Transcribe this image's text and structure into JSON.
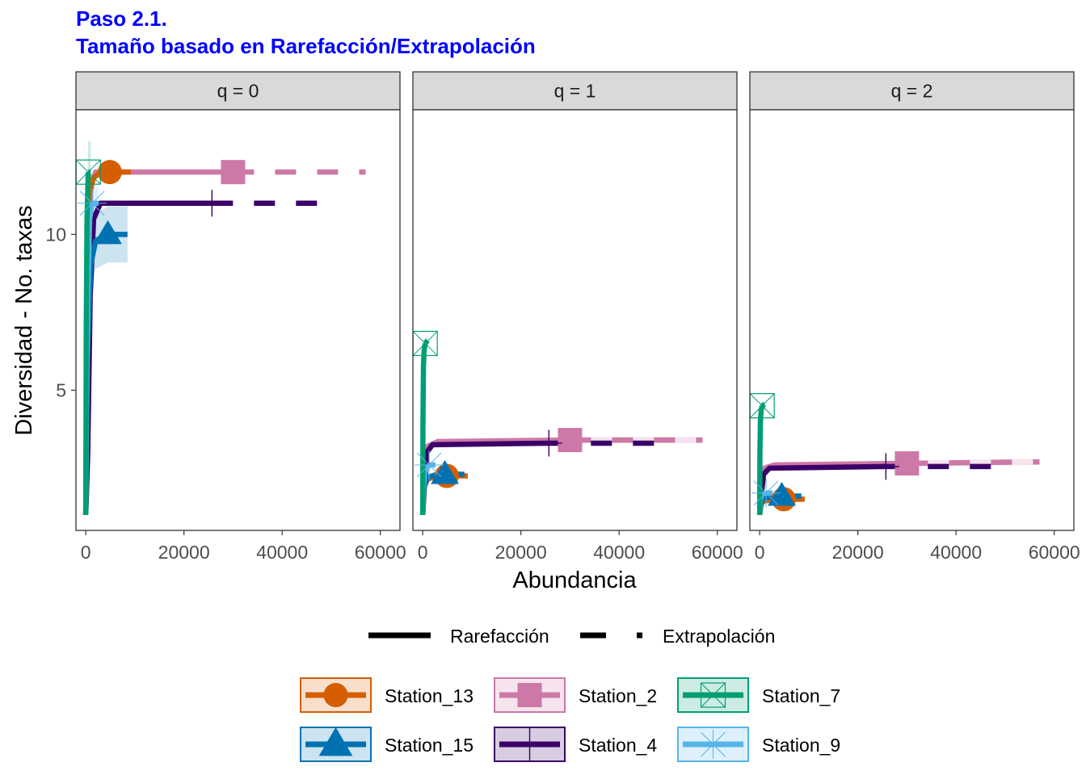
{
  "title": "Paso 2.1.",
  "subtitle": "Tamaño basado en Rarefacción/Extrapolación",
  "chart_data": {
    "type": "line",
    "xlabel": "Abundancia",
    "ylabel": "Diversidad - No. taxas",
    "xlim": [
      -2000,
      64000
    ],
    "ylim": [
      0.5,
      14.0
    ],
    "xticks": [
      0,
      20000,
      40000,
      60000
    ],
    "yticks": [
      5,
      10
    ],
    "grid": false,
    "legend_position": "bottom",
    "method_legend": [
      {
        "label": "Rarefacción",
        "linetype": "solid"
      },
      {
        "label": "Extrapolación",
        "linetype": "dashed"
      }
    ],
    "stations": [
      {
        "name": "Station_13",
        "color": "#D55E00",
        "shape": "circle"
      },
      {
        "name": "Station_2",
        "color": "#CC79A7",
        "shape": "square"
      },
      {
        "name": "Station_7",
        "color": "#009E73",
        "shape": "boxcross"
      },
      {
        "name": "Station_15",
        "color": "#0072B2",
        "shape": "triangle"
      },
      {
        "name": "Station_4",
        "color": "#3B0068",
        "shape": "plus"
      },
      {
        "name": "Station_9",
        "color": "#56B4E9",
        "shape": "asterisk"
      }
    ],
    "panels": [
      {
        "label": "q = 0",
        "series": [
          {
            "name": "Station_13",
            "observed": [
              4900,
              12.0
            ],
            "end": [
              9800,
              12.0
            ],
            "rarefaction": [
              [
                0,
                1
              ],
              [
                300,
                8
              ],
              [
                800,
                11.3
              ],
              [
                1500,
                11.8
              ],
              [
                3000,
                12
              ],
              [
                4900,
                12
              ]
            ],
            "extrapolation": [
              [
                4900,
                12
              ],
              [
                9800,
                12
              ]
            ],
            "ci_low": 0,
            "ci_high": 0
          },
          {
            "name": "Station_2",
            "observed": [
              30000,
              12.0
            ],
            "end": [
              57000,
              12.0
            ],
            "rarefaction": [
              [
                0,
                1
              ],
              [
                300,
                7
              ],
              [
                1000,
                11.5
              ],
              [
                2000,
                12
              ],
              [
                30000,
                12
              ]
            ],
            "extrapolation": [
              [
                30000,
                12
              ],
              [
                57000,
                12
              ]
            ],
            "ci_low": 0,
            "ci_high": 0
          },
          {
            "name": "Station_7",
            "observed": [
              500,
              12.0
            ],
            "end": [
              1000,
              12.0
            ],
            "rarefaction": [
              [
                0,
                1
              ],
              [
                100,
                7
              ],
              [
                250,
                10.5
              ],
              [
                500,
                12
              ]
            ],
            "extrapolation": [
              [
                500,
                12
              ],
              [
                1000,
                12
              ]
            ],
            "ci_low": 1.0,
            "ci_high": 1.0
          },
          {
            "name": "Station_15",
            "observed": [
              4500,
              10.0
            ],
            "end": [
              8500,
              10.0
            ],
            "rarefaction": [
              [
                0,
                1
              ],
              [
                300,
                6
              ],
              [
                1000,
                9
              ],
              [
                2000,
                9.8
              ],
              [
                4500,
                10
              ]
            ],
            "extrapolation": [
              [
                4500,
                10
              ],
              [
                8500,
                10
              ]
            ],
            "ci_low": 0.9,
            "ci_high": 0.9
          },
          {
            "name": "Station_4",
            "observed": [
              25700,
              11.0
            ],
            "end": [
              51000,
              11.0
            ],
            "rarefaction": [
              [
                0,
                1
              ],
              [
                400,
                3
              ],
              [
                900,
                8
              ],
              [
                1600,
                10.5
              ],
              [
                3000,
                11
              ],
              [
                25700,
                11
              ]
            ],
            "extrapolation": [
              [
                25700,
                11
              ],
              [
                51000,
                11
              ]
            ],
            "ci_low": 0,
            "ci_high": 0
          },
          {
            "name": "Station_9",
            "observed": [
              1300,
              11.0
            ],
            "end": [
              2600,
              11.0
            ],
            "rarefaction": [
              [
                0,
                1
              ],
              [
                150,
                4
              ],
              [
                400,
                8
              ],
              [
                800,
                10.5
              ],
              [
                1300,
                11
              ]
            ],
            "extrapolation": [
              [
                1300,
                11
              ],
              [
                2600,
                11
              ]
            ],
            "ci_low": 0.5,
            "ci_high": 0.5
          }
        ]
      },
      {
        "label": "q = 1",
        "series": [
          {
            "name": "Station_13",
            "observed": [
              4900,
              2.25
            ],
            "end": [
              9800,
              2.25
            ],
            "rarefaction": [
              [
                0,
                1
              ],
              [
                300,
                1.9
              ],
              [
                1000,
                2.15
              ],
              [
                2500,
                2.22
              ],
              [
                4900,
                2.25
              ]
            ],
            "extrapolation": [
              [
                4900,
                2.25
              ],
              [
                9800,
                2.25
              ]
            ],
            "ci_low": 0,
            "ci_high": 0
          },
          {
            "name": "Station_2",
            "observed": [
              30000,
              3.4
            ],
            "end": [
              57000,
              3.4
            ],
            "rarefaction": [
              [
                0,
                1
              ],
              [
                300,
                2.6
              ],
              [
                1000,
                3.2
              ],
              [
                3000,
                3.35
              ],
              [
                30000,
                3.4
              ]
            ],
            "extrapolation": [
              [
                30000,
                3.4
              ],
              [
                57000,
                3.4
              ]
            ],
            "ci_low": 0.1,
            "ci_high": 0.1
          },
          {
            "name": "Station_7",
            "observed": [
              500,
              6.5
            ],
            "end": [
              1000,
              6.6
            ],
            "rarefaction": [
              [
                0,
                1
              ],
              [
                50,
                4
              ],
              [
                150,
                5.8
              ],
              [
                300,
                6.3
              ],
              [
                500,
                6.5
              ]
            ],
            "extrapolation": [
              [
                500,
                6.5
              ],
              [
                1000,
                6.6
              ]
            ],
            "ci_low": 0.15,
            "ci_high": 0.15
          },
          {
            "name": "Station_15",
            "observed": [
              4500,
              2.3
            ],
            "end": [
              8500,
              2.3
            ],
            "rarefaction": [
              [
                0,
                1
              ],
              [
                300,
                1.9
              ],
              [
                1000,
                2.2
              ],
              [
                2500,
                2.28
              ],
              [
                4500,
                2.3
              ]
            ],
            "extrapolation": [
              [
                4500,
                2.3
              ],
              [
                8500,
                2.3
              ]
            ],
            "ci_low": 0.05,
            "ci_high": 0.05
          },
          {
            "name": "Station_4",
            "observed": [
              25700,
              3.3
            ],
            "end": [
              51000,
              3.3
            ],
            "rarefaction": [
              [
                0,
                1
              ],
              [
                300,
                1.8
              ],
              [
                800,
                3.0
              ],
              [
                2000,
                3.25
              ],
              [
                25700,
                3.3
              ]
            ],
            "extrapolation": [
              [
                25700,
                3.3
              ],
              [
                51000,
                3.3
              ]
            ],
            "ci_low": 0,
            "ci_high": 0
          },
          {
            "name": "Station_9",
            "observed": [
              1300,
              2.6
            ],
            "end": [
              2600,
              2.6
            ],
            "rarefaction": [
              [
                0,
                1
              ],
              [
                100,
                1.8
              ],
              [
                400,
                2.4
              ],
              [
                1300,
                2.6
              ]
            ],
            "extrapolation": [
              [
                1300,
                2.6
              ],
              [
                2600,
                2.6
              ]
            ],
            "ci_low": 0.05,
            "ci_high": 0.05
          }
        ]
      },
      {
        "label": "q = 2",
        "series": [
          {
            "name": "Station_13",
            "observed": [
              4900,
              1.5
            ],
            "end": [
              9800,
              1.5
            ],
            "rarefaction": [
              [
                0,
                1
              ],
              [
                300,
                1.35
              ],
              [
                1000,
                1.45
              ],
              [
                4900,
                1.5
              ]
            ],
            "extrapolation": [
              [
                4900,
                1.5
              ],
              [
                9800,
                1.5
              ]
            ],
            "ci_low": 0,
            "ci_high": 0
          },
          {
            "name": "Station_2",
            "observed": [
              30000,
              2.65
            ],
            "end": [
              57000,
              2.7
            ],
            "rarefaction": [
              [
                0,
                1
              ],
              [
                300,
                2.1
              ],
              [
                1000,
                2.5
              ],
              [
                3000,
                2.6
              ],
              [
                30000,
                2.65
              ]
            ],
            "extrapolation": [
              [
                30000,
                2.65
              ],
              [
                57000,
                2.7
              ]
            ],
            "ci_low": 0.1,
            "ci_high": 0.1
          },
          {
            "name": "Station_7",
            "observed": [
              500,
              4.5
            ],
            "end": [
              1000,
              4.55
            ],
            "rarefaction": [
              [
                0,
                1
              ],
              [
                50,
                3
              ],
              [
                150,
                4
              ],
              [
                300,
                4.35
              ],
              [
                500,
                4.5
              ]
            ],
            "extrapolation": [
              [
                500,
                4.5
              ],
              [
                1000,
                4.55
              ]
            ],
            "ci_low": 0.12,
            "ci_high": 0.12
          },
          {
            "name": "Station_15",
            "observed": [
              4500,
              1.6
            ],
            "end": [
              8500,
              1.6
            ],
            "rarefaction": [
              [
                0,
                1
              ],
              [
                300,
                1.4
              ],
              [
                1000,
                1.55
              ],
              [
                4500,
                1.6
              ]
            ],
            "extrapolation": [
              [
                4500,
                1.6
              ],
              [
                8500,
                1.6
              ]
            ],
            "ci_low": 0.03,
            "ci_high": 0.03
          },
          {
            "name": "Station_4",
            "observed": [
              25700,
              2.55
            ],
            "end": [
              51000,
              2.55
            ],
            "rarefaction": [
              [
                0,
                1
              ],
              [
                300,
                1.6
              ],
              [
                800,
                2.3
              ],
              [
                2000,
                2.5
              ],
              [
                25700,
                2.55
              ]
            ],
            "extrapolation": [
              [
                25700,
                2.55
              ],
              [
                51000,
                2.55
              ]
            ],
            "ci_low": 0,
            "ci_high": 0
          },
          {
            "name": "Station_9",
            "observed": [
              1300,
              1.7
            ],
            "end": [
              2600,
              1.7
            ],
            "rarefaction": [
              [
                0,
                1
              ],
              [
                100,
                1.45
              ],
              [
                400,
                1.65
              ],
              [
                1300,
                1.7
              ]
            ],
            "extrapolation": [
              [
                1300,
                1.7
              ],
              [
                2600,
                1.7
              ]
            ],
            "ci_low": 0.03,
            "ci_high": 0.03
          }
        ]
      }
    ]
  }
}
